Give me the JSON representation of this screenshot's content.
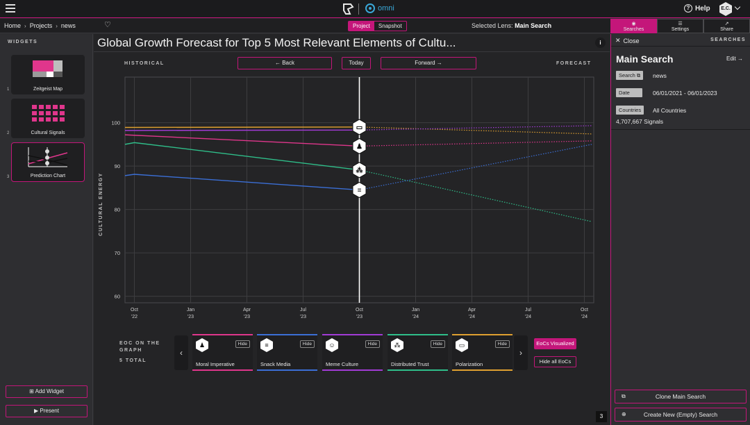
{
  "header": {
    "brand": "omni",
    "help_label": "Help",
    "avatar_initials": "E.C."
  },
  "breadcrumb": {
    "home": "Home",
    "projects": "Projects",
    "current": "news"
  },
  "view_toggle": {
    "project": "Project",
    "snapshot": "Snapshot",
    "selected": "Project"
  },
  "lens": {
    "prefix": "Selected Lens:",
    "name": "Main Search"
  },
  "right_tabs": [
    {
      "label": "Searches",
      "icon": "search-icon",
      "active": true
    },
    {
      "label": "Settings",
      "icon": "sliders-icon",
      "active": false
    },
    {
      "label": "Share",
      "icon": "share-icon",
      "active": false
    }
  ],
  "sidebar": {
    "heading": "WIDGETS",
    "widgets": [
      {
        "num": "1",
        "label": "Zeitgeist Map"
      },
      {
        "num": "2",
        "label": "Cultural Signals"
      },
      {
        "num": "3",
        "label": "Prediction Chart",
        "active": true
      }
    ],
    "add_widget": "Add Widget",
    "present": "Present"
  },
  "main": {
    "title": "Global Growth Forecast for Top 5 Most Relevant Elements of Cultu...",
    "historical": "HISTORICAL",
    "forecast": "FORECAST",
    "back": "← Back",
    "today": "Today",
    "forward": "Forward →",
    "eoc_heading": "EOC ON THE GRAPH",
    "eoc_total": "5 TOTAL",
    "eocs_visualized": "EoCs Visualized",
    "hide_all": "Hide all EoCs",
    "page_number": "3"
  },
  "eoc_cards": [
    {
      "name": "Moral Imperative",
      "color": "#e0368c",
      "icon": "person-icon",
      "hide": "Hide"
    },
    {
      "name": "Snack Media",
      "color": "#3b6fd6",
      "icon": "message-icon",
      "hide": "Hide"
    },
    {
      "name": "Meme Culture",
      "color": "#a23bd6",
      "icon": "meme-icon",
      "hide": "Hide"
    },
    {
      "name": "Distributed Trust",
      "color": "#2fbf8a",
      "icon": "group-icon",
      "hide": "Hide"
    },
    {
      "name": "Polarization",
      "color": "#e0a030",
      "icon": "chat-icon",
      "hide": "Hide"
    }
  ],
  "chart_data": {
    "type": "line",
    "ylabel": "CULTURAL ENERGY",
    "yticks": [
      60,
      70,
      80,
      90,
      100
    ],
    "ylim": [
      58.5,
      110.5
    ],
    "x_ticks": [
      {
        "month": "Oct",
        "year": "'22",
        "t": 0
      },
      {
        "month": "Jan",
        "year": "'23",
        "t": 3
      },
      {
        "month": "Apr",
        "year": "'23",
        "t": 6
      },
      {
        "month": "Jul",
        "year": "'23",
        "t": 9
      },
      {
        "month": "Oct",
        "year": "'23",
        "t": 12
      },
      {
        "month": "Jan",
        "year": "'24",
        "t": 15
      },
      {
        "month": "Apr",
        "year": "'24",
        "t": 18
      },
      {
        "month": "Jul",
        "year": "'24",
        "t": 21
      },
      {
        "month": "Oct",
        "year": "'24",
        "t": 24
      }
    ],
    "xlim": [
      -0.5,
      24.5
    ],
    "today_t": 12,
    "grid": true,
    "series": [
      {
        "name": "Polarization",
        "color": "#e0a030",
        "historical": [
          [
            -0.5,
            98.9
          ],
          [
            12,
            99.0
          ]
        ],
        "forecast": [
          [
            12,
            99.0
          ],
          [
            24.4,
            97.4
          ]
        ]
      },
      {
        "name": "Meme Culture",
        "color": "#a23bd6",
        "historical": [
          [
            -0.5,
            98.2
          ],
          [
            12,
            98.3
          ]
        ],
        "forecast": [
          [
            12,
            98.3
          ],
          [
            24.4,
            99.3
          ]
        ]
      },
      {
        "name": "Moral Imperative",
        "color": "#e0368c",
        "historical": [
          [
            -0.5,
            97.2
          ],
          [
            12,
            94.6
          ]
        ],
        "forecast": [
          [
            12,
            94.6
          ],
          [
            24.4,
            95.8
          ]
        ]
      },
      {
        "name": "Distributed Trust",
        "color": "#2fbf8a",
        "historical": [
          [
            -0.5,
            95.0
          ],
          [
            0,
            95.4
          ],
          [
            12,
            89.1
          ]
        ],
        "forecast": [
          [
            12,
            89.1
          ],
          [
            24.4,
            77.2
          ]
        ]
      },
      {
        "name": "Snack Media",
        "color": "#3b6fd6",
        "historical": [
          [
            -0.5,
            87.8
          ],
          [
            0,
            88.1
          ],
          [
            12,
            84.5
          ]
        ],
        "forecast": [
          [
            12,
            84.5
          ],
          [
            24.4,
            95.0
          ]
        ]
      }
    ]
  },
  "right_panel": {
    "close": "Close",
    "heading": "SEARCHES",
    "title": "Main Search",
    "edit": "Edit →",
    "search_tag": "Search",
    "search_value": "news",
    "date_tag": "Date",
    "date_value": "06/01/2021 - 06/01/2023",
    "countries_tag": "Countries",
    "countries_value": "All Countries",
    "signals": "4,707,667 Signals",
    "clone": "Clone Main Search",
    "create_new": "Create New (Empty) Search"
  }
}
